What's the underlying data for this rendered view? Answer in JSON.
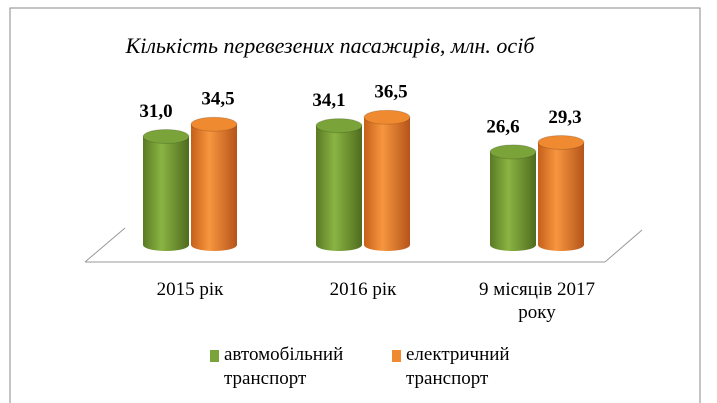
{
  "chart_data": {
    "type": "bar",
    "title": "Кількість перевезених пасажирів, млн. осіб",
    "categories": [
      "2015 рік",
      "2016 рік",
      "9 місяців 2017 року"
    ],
    "series": [
      {
        "name": "автомобільний транспорт",
        "color": "#7aa33a",
        "values": [
          31.0,
          34.1,
          26.6
        ],
        "value_labels": [
          "31,0",
          "34,1",
          "26,6"
        ]
      },
      {
        "name": "електричний транспорт",
        "color": "#f08a30",
        "values": [
          34.5,
          36.5,
          29.3
        ],
        "value_labels": [
          "34,5",
          "36,5",
          "29,3"
        ]
      }
    ]
  }
}
